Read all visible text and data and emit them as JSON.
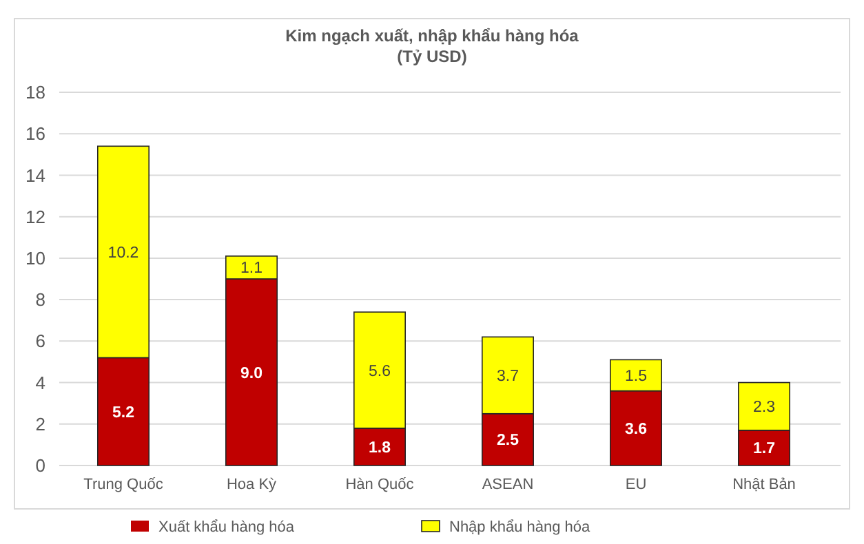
{
  "chart_data": {
    "type": "bar",
    "title": "Kim ngạch xuất, nhập khẩu hàng hóa",
    "subtitle": "(Tỷ USD)",
    "categories": [
      "Trung Quốc",
      "Hoa Kỳ",
      "Hàn Quốc",
      "ASEAN",
      "EU",
      "Nhật Bản"
    ],
    "series": [
      {
        "name": "Xuất khẩu hàng hóa",
        "color": "#c00000",
        "values": [
          5.2,
          9.0,
          1.8,
          2.5,
          3.6,
          1.7
        ],
        "value_labels": [
          "5.2",
          "9.0",
          "1.8",
          "2.5",
          "3.6",
          "1.7"
        ]
      },
      {
        "name": "Nhập khẩu hàng hóa",
        "color": "#ffff00",
        "values": [
          10.2,
          1.1,
          5.6,
          3.7,
          1.5,
          2.3
        ],
        "value_labels": [
          "10.2",
          "1.1",
          "5.6",
          "3.7",
          "1.5",
          "2.3"
        ]
      }
    ],
    "stacked": true,
    "ylim": [
      0,
      18
    ],
    "yticks": [
      0,
      2,
      4,
      6,
      8,
      10,
      12,
      14,
      16,
      18
    ],
    "grid": "y",
    "legend": "bottom"
  }
}
